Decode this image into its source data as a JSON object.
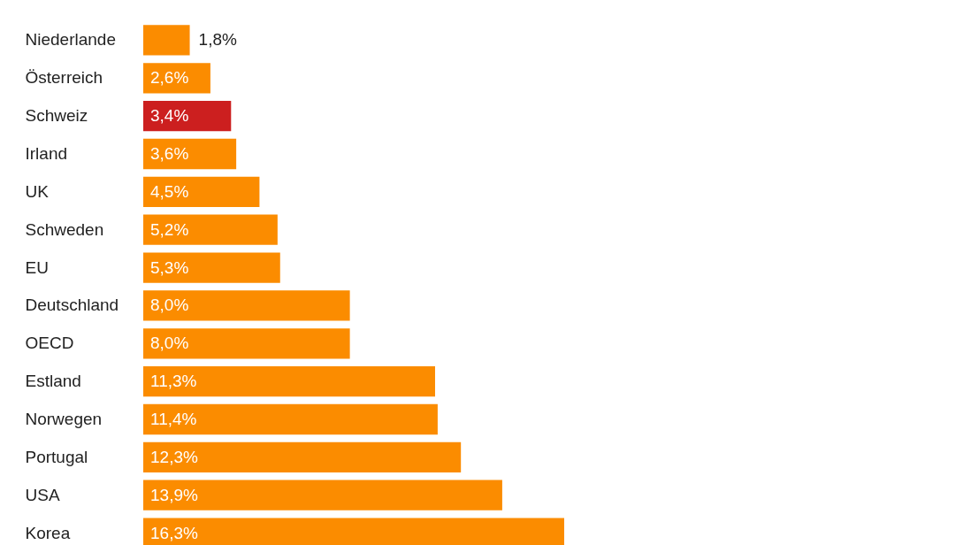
{
  "chart_data": {
    "type": "bar",
    "orientation": "horizontal",
    "categories": [
      "Niederlande",
      "Österreich",
      "Schweiz",
      "Irland",
      "UK",
      "Schweden",
      "EU",
      "Deutschland",
      "OECD",
      "Estland",
      "Norwegen",
      "Portugal",
      "USA",
      "Korea"
    ],
    "values": [
      1.8,
      2.6,
      3.4,
      3.6,
      4.5,
      5.2,
      5.3,
      8.0,
      8.0,
      11.3,
      11.4,
      12.3,
      13.9,
      16.3
    ],
    "value_labels": [
      "1,8%",
      "2,6%",
      "3,4%",
      "3,6%",
      "4,5%",
      "5,2%",
      "5,3%",
      "8,0%",
      "8,0%",
      "11,3%",
      "11,4%",
      "12,3%",
      "13,9%",
      "16,3%"
    ],
    "colors": [
      "#fb8c00",
      "#fb8c00",
      "#cc1f1f",
      "#fb8c00",
      "#fb8c00",
      "#fb8c00",
      "#fb8c00",
      "#fb8c00",
      "#fb8c00",
      "#fb8c00",
      "#fb8c00",
      "#fb8c00",
      "#fb8c00",
      "#fb8c00"
    ],
    "tick_labels": "y",
    "grid": false
  }
}
